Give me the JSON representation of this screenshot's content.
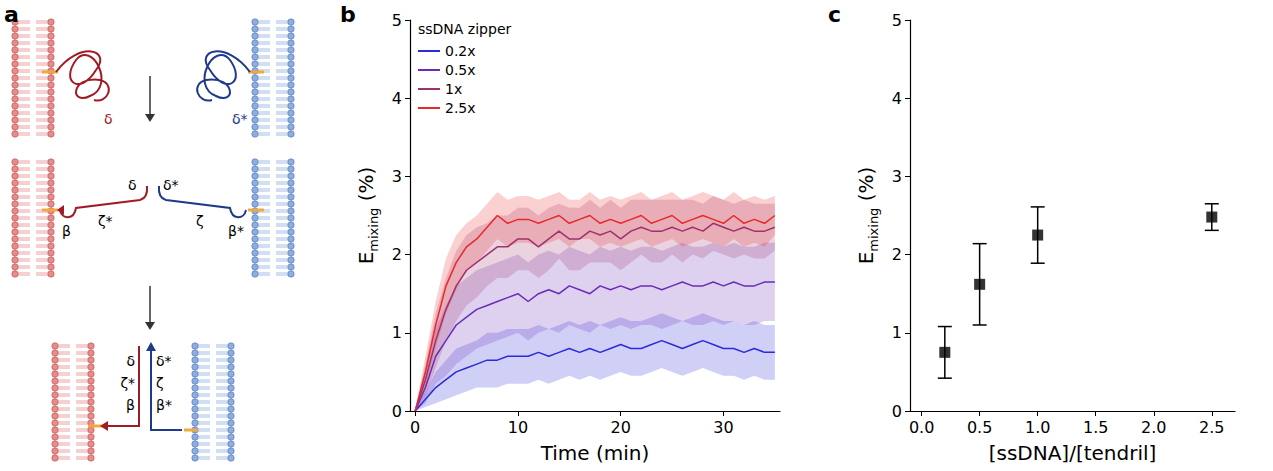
{
  "diagram": {
    "panel_label": "a",
    "labels": {
      "top_red": "δ",
      "top_blue": "δ*",
      "mid_red_tip": "δ",
      "mid_blue_tip": "δ*",
      "mid_red_anchor": "β",
      "mid_red_arm": "ζ*",
      "mid_blue_arm": "ζ",
      "mid_blue_anchor": "β*",
      "bot_red": [
        "δ",
        "ζ*",
        "β"
      ],
      "bot_blue": [
        "δ*",
        "ζ",
        "β*"
      ]
    }
  },
  "chart_data": [
    {
      "panel_label": "b",
      "type": "line",
      "xlabel": "Time (min)",
      "ylabel": {
        "base": "E",
        "sub": "mixing",
        "rest": " (%)"
      },
      "legend_title": "ssDNA zipper",
      "legend": "upper left",
      "grid": false,
      "x": [
        0,
        1,
        2,
        3,
        4,
        5,
        6,
        7,
        8,
        9,
        10,
        11,
        12,
        13,
        14,
        15,
        16,
        17,
        18,
        19,
        20,
        21,
        22,
        23,
        24,
        25,
        26,
        27,
        28,
        29,
        30,
        31,
        32,
        33,
        34,
        35
      ],
      "xlim": [
        -0.5,
        35.5
      ],
      "xticks": [
        0,
        10,
        20,
        30
      ],
      "ylim": [
        0,
        5
      ],
      "yticks": [
        0,
        1,
        2,
        3,
        4,
        5
      ],
      "series": [
        {
          "name": "0.2x",
          "color": "#2b2bd9",
          "values": [
            0,
            0.15,
            0.3,
            0.4,
            0.5,
            0.55,
            0.6,
            0.65,
            0.65,
            0.7,
            0.7,
            0.7,
            0.75,
            0.7,
            0.75,
            0.8,
            0.75,
            0.8,
            0.75,
            0.8,
            0.85,
            0.8,
            0.8,
            0.85,
            0.9,
            0.85,
            0.8,
            0.85,
            0.9,
            0.85,
            0.8,
            0.8,
            0.75,
            0.8,
            0.75,
            0.75
          ],
          "errors": [
            0,
            0.1,
            0.2,
            0.25,
            0.3,
            0.3,
            0.3,
            0.35,
            0.35,
            0.35,
            0.35,
            0.35,
            0.35,
            0.35,
            0.35,
            0.35,
            0.35,
            0.35,
            0.35,
            0.35,
            0.35,
            0.35,
            0.35,
            0.35,
            0.35,
            0.35,
            0.35,
            0.35,
            0.35,
            0.35,
            0.35,
            0.35,
            0.35,
            0.35,
            0.35,
            0.35
          ]
        },
        {
          "name": "0.5x",
          "color": "#6a2cb5",
          "values": [
            0,
            0.3,
            0.7,
            0.9,
            1.1,
            1.2,
            1.3,
            1.35,
            1.4,
            1.45,
            1.5,
            1.4,
            1.5,
            1.55,
            1.5,
            1.6,
            1.55,
            1.5,
            1.6,
            1.55,
            1.6,
            1.55,
            1.6,
            1.6,
            1.55,
            1.6,
            1.65,
            1.6,
            1.6,
            1.65,
            1.6,
            1.65,
            1.6,
            1.6,
            1.65,
            1.65
          ],
          "errors": [
            0,
            0.2,
            0.35,
            0.45,
            0.5,
            0.5,
            0.5,
            0.5,
            0.5,
            0.5,
            0.5,
            0.5,
            0.5,
            0.5,
            0.5,
            0.5,
            0.5,
            0.5,
            0.5,
            0.5,
            0.5,
            0.5,
            0.5,
            0.5,
            0.5,
            0.5,
            0.5,
            0.5,
            0.5,
            0.5,
            0.5,
            0.5,
            0.5,
            0.5,
            0.5,
            0.5
          ]
        },
        {
          "name": "1x",
          "color": "#a0306e",
          "values": [
            0,
            0.4,
            0.9,
            1.3,
            1.6,
            1.8,
            1.9,
            2.0,
            2.1,
            2.1,
            2.2,
            2.2,
            2.1,
            2.2,
            2.3,
            2.2,
            2.2,
            2.3,
            2.25,
            2.3,
            2.2,
            2.3,
            2.35,
            2.3,
            2.3,
            2.35,
            2.3,
            2.35,
            2.3,
            2.4,
            2.35,
            2.3,
            2.35,
            2.3,
            2.3,
            2.35
          ],
          "errors": [
            0,
            0.2,
            0.35,
            0.4,
            0.45,
            0.45,
            0.45,
            0.4,
            0.4,
            0.4,
            0.4,
            0.4,
            0.4,
            0.4,
            0.35,
            0.4,
            0.4,
            0.4,
            0.35,
            0.4,
            0.4,
            0.4,
            0.35,
            0.4,
            0.4,
            0.35,
            0.4,
            0.35,
            0.35,
            0.35,
            0.35,
            0.35,
            0.35,
            0.35,
            0.35,
            0.3
          ]
        },
        {
          "name": "2.5x",
          "color": "#e8282a",
          "values": [
            0,
            0.5,
            1.1,
            1.6,
            1.9,
            2.1,
            2.2,
            2.35,
            2.5,
            2.4,
            2.45,
            2.45,
            2.4,
            2.45,
            2.5,
            2.4,
            2.45,
            2.5,
            2.4,
            2.45,
            2.4,
            2.45,
            2.5,
            2.4,
            2.45,
            2.5,
            2.4,
            2.45,
            2.5,
            2.45,
            2.4,
            2.5,
            2.4,
            2.45,
            2.4,
            2.5
          ],
          "errors": [
            0,
            0.2,
            0.3,
            0.35,
            0.35,
            0.3,
            0.3,
            0.3,
            0.3,
            0.3,
            0.3,
            0.3,
            0.3,
            0.3,
            0.3,
            0.3,
            0.25,
            0.3,
            0.3,
            0.3,
            0.3,
            0.3,
            0.3,
            0.3,
            0.3,
            0.3,
            0.3,
            0.3,
            0.3,
            0.3,
            0.3,
            0.3,
            0.3,
            0.3,
            0.3,
            0.25
          ]
        }
      ]
    },
    {
      "panel_label": "c",
      "type": "scatter",
      "marker": "square",
      "color": "#000000",
      "grid": false,
      "xlabel": "[ssDNA]/[tendril]",
      "ylabel": {
        "base": "E",
        "sub": "mixing",
        "rest": " (%)"
      },
      "x": [
        0.2,
        0.5,
        1,
        2.5
      ],
      "values": [
        0.75,
        1.62,
        2.25,
        2.48
      ],
      "errors": [
        0.33,
        0.52,
        0.36,
        0.17
      ],
      "xlim": [
        -0.1,
        2.7
      ],
      "xticks": [
        {
          "value": 0,
          "label": "0.0"
        },
        0.5,
        {
          "value": 1,
          "label": "1.0"
        },
        1.5,
        {
          "value": 2,
          "label": "2.0"
        },
        2.5
      ],
      "ylim": [
        0,
        5
      ],
      "yticks": [
        0,
        1,
        2,
        3,
        4,
        5
      ]
    }
  ]
}
